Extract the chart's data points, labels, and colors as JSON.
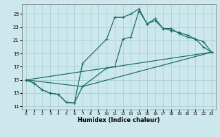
{
  "xlabel": "Humidex (Indice chaleur)",
  "xlim": [
    -0.5,
    23.5
  ],
  "ylim": [
    10.5,
    26.5
  ],
  "xticks": [
    0,
    1,
    2,
    3,
    4,
    5,
    6,
    7,
    8,
    9,
    10,
    11,
    12,
    13,
    14,
    15,
    16,
    17,
    18,
    19,
    20,
    21,
    22,
    23
  ],
  "yticks": [
    11,
    13,
    15,
    17,
    19,
    21,
    23,
    25
  ],
  "background_color": "#cce8ec",
  "grid_color": "#aacfd4",
  "line_color": "#1a6e66",
  "line1_x": [
    0,
    1,
    2,
    3,
    4,
    5,
    6,
    7,
    10,
    11,
    12,
    13,
    14,
    15,
    16,
    17,
    18,
    19,
    20,
    21,
    22,
    23
  ],
  "line1_y": [
    15,
    14.5,
    13.5,
    13.0,
    12.8,
    11.6,
    11.5,
    17.5,
    21.2,
    24.5,
    24.5,
    25.0,
    25.8,
    23.5,
    24.3,
    22.8,
    22.5,
    22.2,
    21.8,
    21.2,
    20.8,
    19.2
  ],
  "line2_x": [
    0,
    1,
    2,
    3,
    4,
    5,
    6,
    7,
    10,
    11,
    12,
    13,
    14,
    15,
    16,
    17,
    18,
    19,
    20,
    21,
    22,
    23
  ],
  "line2_y": [
    15,
    14.5,
    13.5,
    13.0,
    12.8,
    11.6,
    11.5,
    14.0,
    16.8,
    17.0,
    21.2,
    21.5,
    25.5,
    23.5,
    24.0,
    22.8,
    22.8,
    22.0,
    21.5,
    21.2,
    20.0,
    19.2
  ],
  "line3_x": [
    0,
    23
  ],
  "line3_y": [
    15,
    19.2
  ],
  "line4_x": [
    0,
    7,
    23
  ],
  "line4_y": [
    15,
    14.0,
    19.2
  ]
}
